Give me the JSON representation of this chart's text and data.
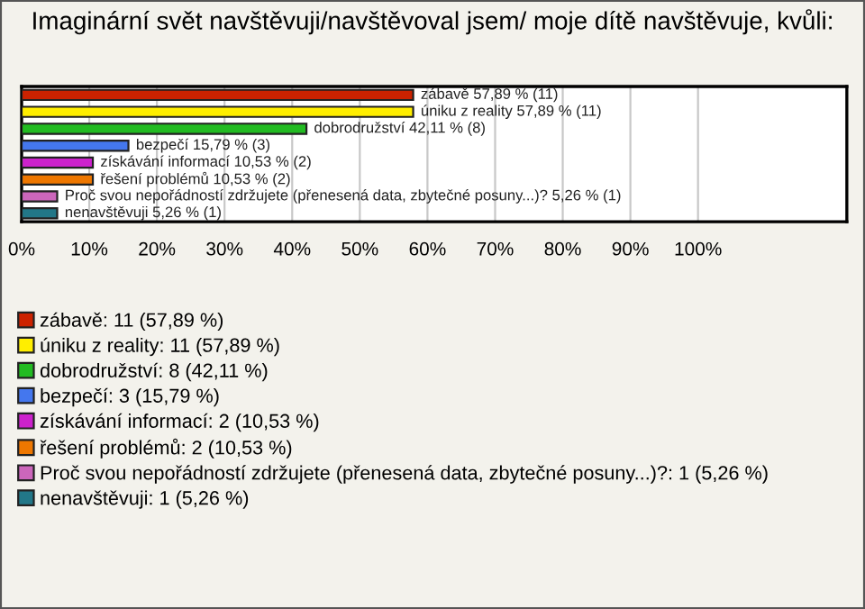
{
  "chart_data": {
    "type": "bar",
    "orientation": "horizontal",
    "title": "Imaginární svět navštěvuji/navštěvoval jsem/ moje dítě navštěvuje, kvůli:",
    "categories": [
      null,
      null,
      null,
      null,
      null,
      null,
      null,
      null
    ],
    "series": [
      {
        "name": "zábavě: 11 (57,89 %)",
        "color": "#cc2200",
        "values": [
          57.89,
          null,
          null,
          null,
          null,
          null,
          null,
          null
        ],
        "value_labels": [
          "zábavě 57,89 % (11)",
          null,
          null,
          null,
          null,
          null,
          null,
          null
        ]
      },
      {
        "name": "úniku z reality: 11 (57,89 %)",
        "color": "#ffee00",
        "values": [
          null,
          57.89,
          null,
          null,
          null,
          null,
          null,
          null
        ],
        "value_labels": [
          null,
          "úniku z reality 57,89 % (11)",
          null,
          null,
          null,
          null,
          null,
          null
        ]
      },
      {
        "name": "dobrodružství: 8 (42,11 %)",
        "color": "#22bb22",
        "values": [
          null,
          null,
          42.11,
          null,
          null,
          null,
          null,
          null
        ],
        "value_labels": [
          null,
          null,
          "dobrodružství 42,11 % (8)",
          null,
          null,
          null,
          null,
          null
        ]
      },
      {
        "name": "bezpečí: 3 (15,79 %)",
        "color": "#4477ee",
        "values": [
          null,
          null,
          null,
          15.79,
          null,
          null,
          null,
          null
        ],
        "value_labels": [
          null,
          null,
          null,
          "bezpečí 15,79 % (3)",
          null,
          null,
          null,
          null
        ]
      },
      {
        "name": "získávání informací: 2 (10,53 %)",
        "color": "#cc22cc",
        "values": [
          null,
          null,
          null,
          null,
          10.53,
          null,
          null,
          null
        ],
        "value_labels": [
          null,
          null,
          null,
          null,
          "získávání informací 10,53 % (2)",
          null,
          null,
          null
        ]
      },
      {
        "name": "řešení problémů: 2 (10,53 %)",
        "color": "#ee7700",
        "values": [
          null,
          null,
          null,
          null,
          null,
          10.53,
          null,
          null
        ],
        "value_labels": [
          null,
          null,
          null,
          null,
          null,
          "řešení problémů 10,53 % (2)",
          null,
          null
        ]
      },
      {
        "name": "Proč svou nepořádností zdržujete (přenesená data, zbytečné posuny...)?: 1 (5,26 %)",
        "color": "#cc66bb",
        "values": [
          null,
          null,
          null,
          null,
          null,
          null,
          5.26,
          null
        ],
        "value_labels": [
          null,
          null,
          null,
          null,
          null,
          null,
          "Proč svou nepořádností zdržujete (přenesená data, zbytečné posuny...)? 5,26 % (1)",
          null
        ]
      },
      {
        "name": "nenavštěvuji: 1 (5,26 %)",
        "color": "#227788",
        "values": [
          null,
          null,
          null,
          null,
          null,
          null,
          null,
          5.26
        ],
        "value_labels": [
          null,
          null,
          null,
          null,
          null,
          null,
          null,
          "nenavštěvuji 5,26 % (1)"
        ]
      }
    ],
    "xlim": [
      0,
      122
    ],
    "xticks": [
      {
        "value": 0,
        "label": "0%"
      },
      {
        "value": 10,
        "label": "10%"
      },
      {
        "value": 20,
        "label": "20%"
      },
      {
        "value": 30,
        "label": "30%"
      },
      {
        "value": 40,
        "label": "40%"
      },
      {
        "value": 50,
        "label": "50%"
      },
      {
        "value": 60,
        "label": "60%"
      },
      {
        "value": 70,
        "label": "70%"
      },
      {
        "value": 80,
        "label": "80%"
      },
      {
        "value": 90,
        "label": "90%"
      },
      {
        "value": 100,
        "label": "100%"
      }
    ],
    "grid": "x",
    "legend": "bottom"
  }
}
